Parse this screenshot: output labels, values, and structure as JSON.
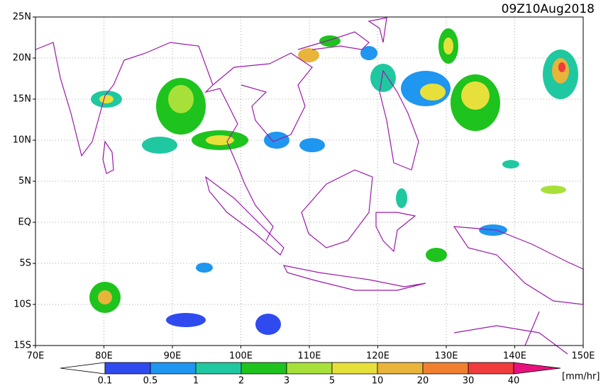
{
  "title": "09Z10Aug2018",
  "map": {
    "lat_labels": [
      "25N",
      "20N",
      "15N",
      "10N",
      "5N",
      "EQ",
      "5S",
      "10S",
      "15S"
    ],
    "lon_labels": [
      "70E",
      "80E",
      "90E",
      "100E",
      "110E",
      "120E",
      "130E",
      "140E",
      "150E"
    ]
  },
  "colorbar": {
    "levels": [
      0.1,
      0.5,
      1,
      2,
      3,
      5,
      10,
      20,
      30,
      40
    ],
    "colors": [
      "#ffffff",
      "#2f4bef",
      "#1f96f0",
      "#1fc8a0",
      "#1ec31e",
      "#a8e03a",
      "#e8e03a",
      "#e8b43a",
      "#f08030",
      "#f03c3c",
      "#e8127c"
    ],
    "unit": "[mm/hr]"
  }
}
